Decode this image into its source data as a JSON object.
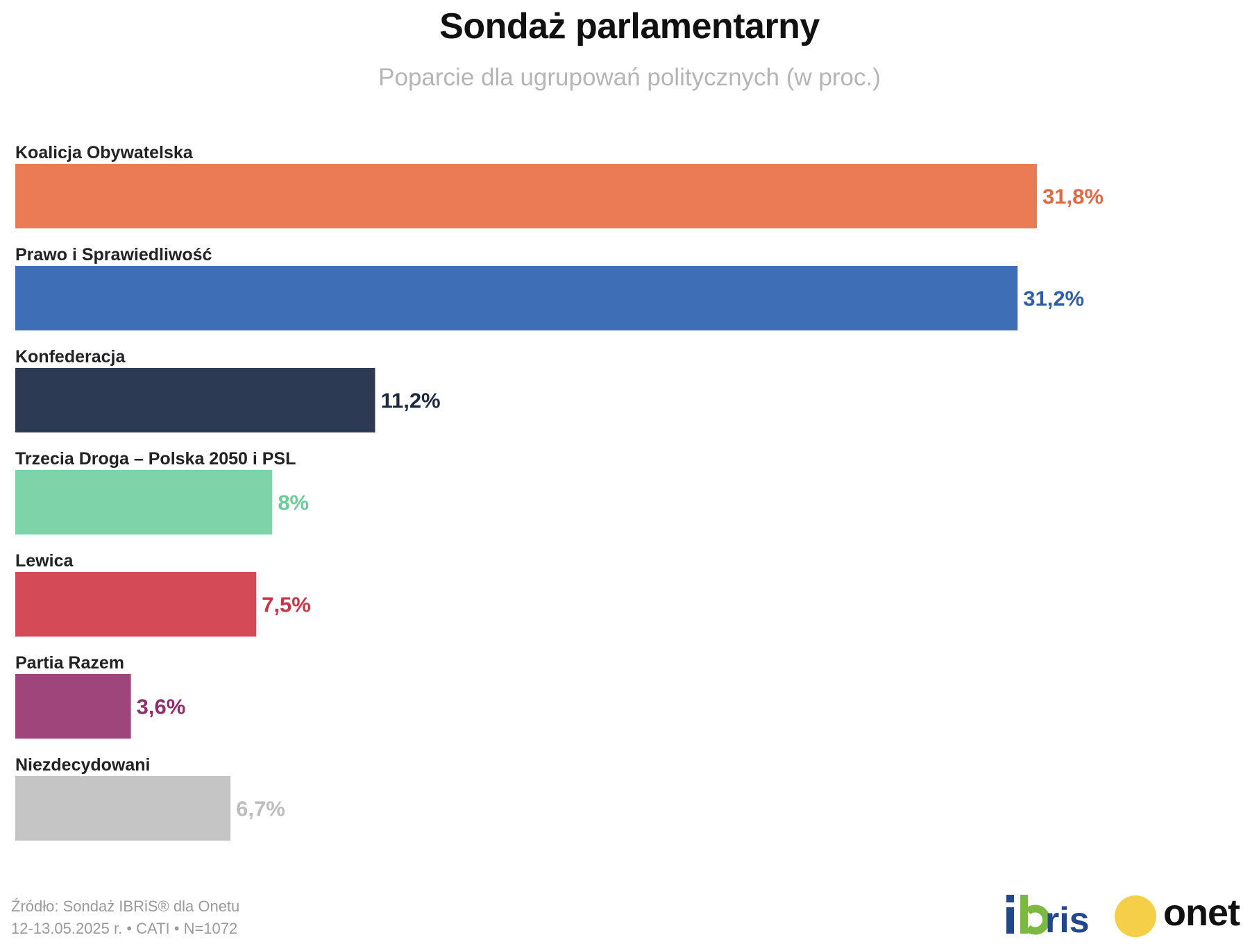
{
  "chart_data": {
    "type": "bar",
    "orientation": "horizontal",
    "title": "Sondaż parlamentarny",
    "subtitle": "Poparcie dla ugrupowań politycznych (w proc.)",
    "categories": [
      "Koalicja Obywatelska",
      "Prawo i Sprawiedliwość",
      "Konfederacja",
      "Trzecia Droga – Polska 2050 i PSL",
      "Lewica",
      "Partia Razem",
      "Niezdecydowani"
    ],
    "values": [
      31.8,
      31.2,
      11.2,
      8,
      7.5,
      3.6,
      6.7
    ],
    "value_labels": [
      "31,8%",
      "31,2%",
      "11,2%",
      "8%",
      "7,5%",
      "3,6%",
      "6,7%"
    ],
    "bar_colors": [
      "#e97b55",
      "#3e6fb6",
      "#2d3a53",
      "#7fd3a8",
      "#d24b57",
      "#9e467c",
      "#c5c5c5"
    ],
    "label_colors": [
      "#e06a42",
      "#2d5fa8",
      "#1e2a40",
      "#6ccc9a",
      "#cc3444",
      "#8e2e6a",
      "#bdbdbd"
    ],
    "grid": false,
    "legend": "none"
  },
  "footer": {
    "source": "Źródło: Sondaż IBRiS® dla Onetu",
    "meta": "12-13.05.2025 r. • CATI • N=1072"
  },
  "logos": {
    "ibris": "ibris",
    "onet": "onet"
  },
  "colors": {
    "ibris_blue": "#24468c",
    "ibris_green": "#7bb941",
    "onet_yellow": "#f4cf47"
  }
}
